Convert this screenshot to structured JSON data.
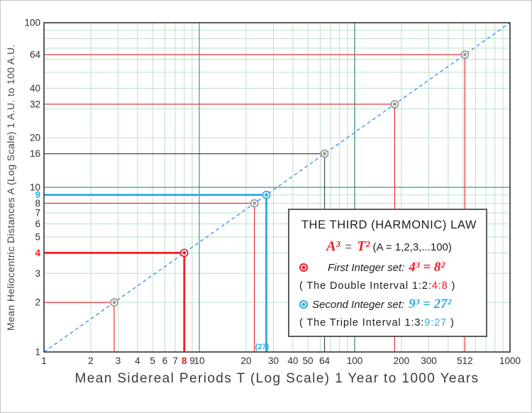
{
  "colors": {
    "red": "#ee1d25",
    "cyan": "#2aabe2",
    "dark_text": "#1d1d1d",
    "equals_gray": "#8a8a8a",
    "diagonal_blue": "#4590f2",
    "grid_green": "#b9e0c7",
    "grid_decade_teal": "#46908c",
    "axis_dark": "#4a4a4a",
    "marker_gray": "#979797"
  },
  "chart_data": {
    "type": "scatter",
    "x_scale": "log",
    "y_scale": "log",
    "xlim": [
      1,
      1000
    ],
    "ylim": [
      1,
      100
    ],
    "xlabel": "Mean Sidereal Periods T (Log Scale) 1 Year to 1000 Years",
    "ylabel": "Mean Heliocentric Distances A (Log Scale) 1 A.U. to 100 A.U.",
    "relation": "A³ = T²",
    "grid": {
      "minor_color": "#b9e0c7",
      "decade_color": "#46908c",
      "border_color": "#4a4a4a"
    },
    "diagonal": {
      "from": [
        1,
        1
      ],
      "to": [
        1000,
        100
      ],
      "color": "#4590f2",
      "dash": "5,4",
      "width": 1.4
    },
    "x_ticks": [
      {
        "v": 1,
        "label": "1"
      },
      {
        "v": 2,
        "label": "2"
      },
      {
        "v": 3,
        "label": "3"
      },
      {
        "v": 4,
        "label": "4"
      },
      {
        "v": 5,
        "label": "5"
      },
      {
        "v": 6,
        "label": "6"
      },
      {
        "v": 7,
        "label": "7"
      },
      {
        "v": 8,
        "label": "8",
        "color": "#ee1d25",
        "bold": true
      },
      {
        "v": 9,
        "label": "9"
      },
      {
        "v": 10,
        "label": "10"
      },
      {
        "v": 20,
        "label": "20"
      },
      {
        "v": 30,
        "label": "30"
      },
      {
        "v": 40,
        "label": "40"
      },
      {
        "v": 50,
        "label": "50"
      },
      {
        "v": 64,
        "label": "64"
      },
      {
        "v": 100,
        "label": "100"
      },
      {
        "v": 200,
        "label": "200"
      },
      {
        "v": 300,
        "label": "300"
      },
      {
        "v": 512,
        "label": "512"
      },
      {
        "v": 1000,
        "label": "1000"
      }
    ],
    "y_ticks": [
      {
        "v": 1,
        "label": "1"
      },
      {
        "v": 2,
        "label": "2"
      },
      {
        "v": 3,
        "label": "3"
      },
      {
        "v": 4,
        "label": "4",
        "color": "#ee1d25",
        "bold": true
      },
      {
        "v": 5,
        "label": "5"
      },
      {
        "v": 6,
        "label": "6"
      },
      {
        "v": 7,
        "label": "7"
      },
      {
        "v": 8,
        "label": "8"
      },
      {
        "v": 9,
        "label": "9",
        "color": "#2aabe2",
        "bold": true
      },
      {
        "v": 10,
        "label": "10"
      },
      {
        "v": 16,
        "label": "16"
      },
      {
        "v": 20,
        "label": "20"
      },
      {
        "v": 32,
        "label": "32"
      },
      {
        "v": 40,
        "label": "40"
      },
      {
        "v": 64,
        "label": "64"
      },
      {
        "v": 100,
        "label": "100"
      }
    ],
    "points": [
      {
        "T": 2.83,
        "A": 2,
        "marker_color": "#979797",
        "line_color": "#ee1d25",
        "line_width": 1.1
      },
      {
        "T": 8,
        "A": 4,
        "marker_color": "#ee1d25",
        "line_color": "#ee1d25",
        "line_width": 2.8
      },
      {
        "T": 22.63,
        "A": 8,
        "marker_color": "#979797",
        "line_color": "#ee1d25",
        "line_width": 1.1
      },
      {
        "T": 27,
        "A": 9,
        "marker_color": "#2aabe2",
        "line_color": "#2aabe2",
        "line_width": 2.8,
        "annotation": "(27)"
      },
      {
        "T": 64,
        "A": 16,
        "marker_color": "#979797",
        "line_color": "#4a4a4a",
        "line_width": 1.2
      },
      {
        "T": 181,
        "A": 32,
        "marker_color": "#979797",
        "line_color": "#ee1d25",
        "line_width": 1.1
      },
      {
        "T": 512,
        "A": 64,
        "marker_color": "#979797",
        "line_color": "#ee1d25",
        "line_width": 1.1
      }
    ]
  },
  "legend": {
    "title": "THE THIRD (HARMONIC) LAW",
    "law": {
      "lhs": "A³",
      "sign": "=",
      "rhs": "T²",
      "domain": "(A = 1,2,3,...100)"
    },
    "first": {
      "label": "First Integer set:",
      "equation": "4³ = 8²"
    },
    "double_interval": {
      "prefix": "( The Double Interval 1:2:",
      "highlight": "4:8",
      "suffix": " )"
    },
    "second": {
      "label": "Second Integer set:",
      "equation": "9³ = 27²"
    },
    "triple_interval": {
      "prefix": "( The Triple Interval 1:3:",
      "highlight": "9:27",
      "suffix": " )"
    }
  }
}
